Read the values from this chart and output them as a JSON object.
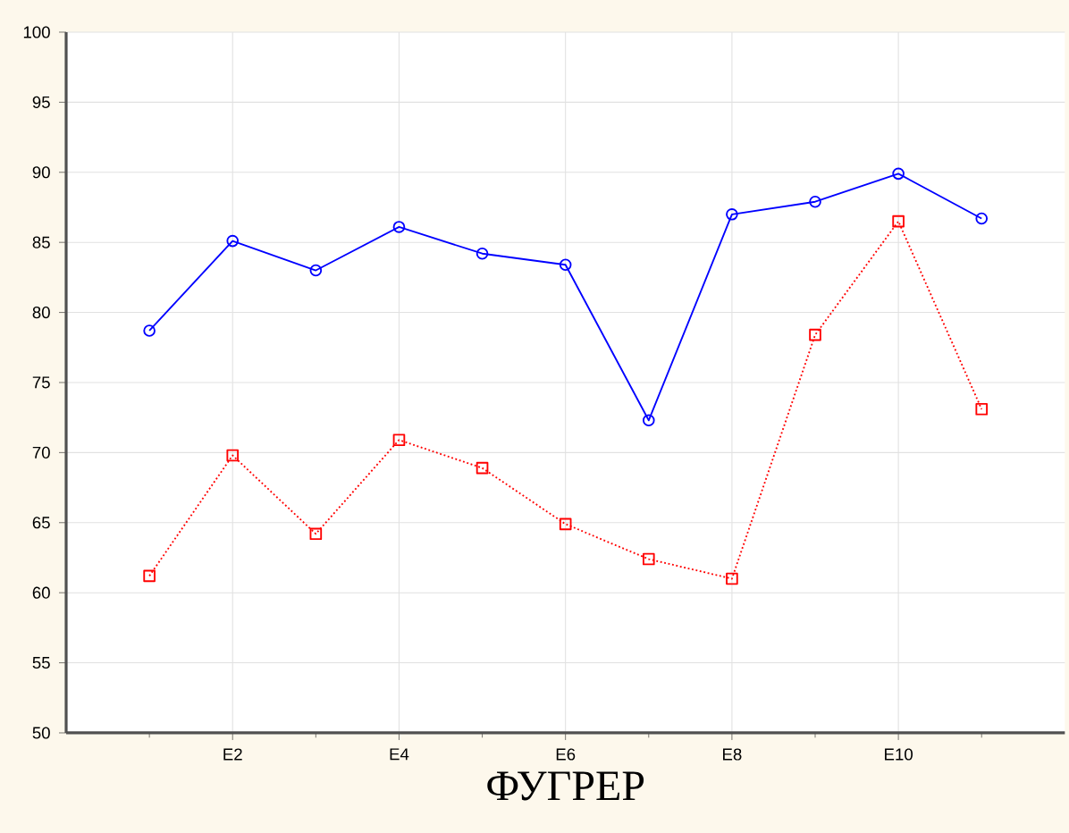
{
  "chart_data": {
    "type": "line",
    "xlabel": "ФУГРЕР",
    "categories": [
      null,
      "E2",
      null,
      "E4",
      null,
      "E6",
      null,
      "E8",
      null,
      "E10",
      null
    ],
    "ylim": [
      50,
      100
    ],
    "yticks": [
      50,
      55,
      60,
      65,
      70,
      75,
      80,
      85,
      90,
      95,
      100
    ],
    "grid": true,
    "series": [
      {
        "color": "#0000ff",
        "marker": "circle",
        "line_style": "solid",
        "values": [
          78.7,
          85.1,
          83.0,
          86.1,
          84.2,
          83.4,
          72.3,
          87.0,
          87.9,
          89.9,
          86.7
        ]
      },
      {
        "color": "#ff0000",
        "marker": "square",
        "line_style": "dotted",
        "values": [
          61.2,
          69.8,
          64.2,
          70.9,
          68.9,
          64.9,
          62.4,
          61.0,
          78.4,
          86.5,
          73.1
        ]
      }
    ]
  }
}
